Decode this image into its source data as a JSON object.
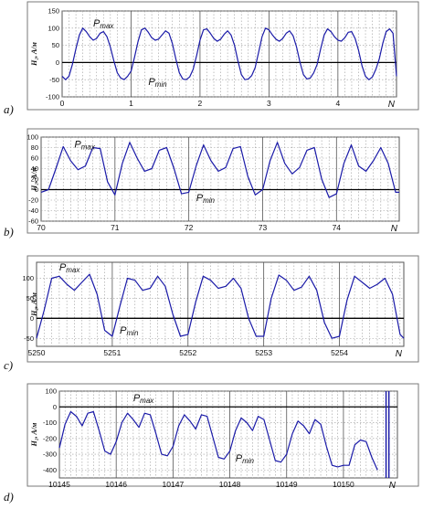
{
  "chart_data": [
    {
      "type": "line",
      "panel": "a)",
      "ylabel": "H₂, A/м",
      "xlabel": "N",
      "xlim": [
        0,
        4.85
      ],
      "ylim": [
        -100,
        150
      ],
      "yticks": [
        -100,
        -50,
        0,
        50,
        100,
        150
      ],
      "xticks": [
        0,
        1,
        2,
        3,
        4
      ],
      "annotations": [
        {
          "base": "P",
          "sub": "max",
          "x": 0.45,
          "y": 105
        },
        {
          "base": "P",
          "sub": "min",
          "x": 1.25,
          "y": -65
        }
      ],
      "series": [
        {
          "x": [
            0,
            0.05,
            0.1,
            0.15,
            0.2,
            0.25,
            0.3,
            0.35,
            0.4,
            0.45,
            0.5,
            0.55,
            0.6,
            0.65,
            0.7,
            0.75,
            0.8,
            0.85,
            0.9,
            0.95,
            1,
            1.05,
            1.1,
            1.15,
            1.2,
            1.25,
            1.3,
            1.35,
            1.4,
            1.45,
            1.5,
            1.55,
            1.6,
            1.65,
            1.7,
            1.75,
            1.8,
            1.85,
            1.9,
            1.95,
            2,
            2.05,
            2.1,
            2.15,
            2.2,
            2.25,
            2.3,
            2.35,
            2.4,
            2.45,
            2.5,
            2.55,
            2.6,
            2.65,
            2.7,
            2.75,
            2.8,
            2.85,
            2.9,
            2.95,
            3,
            3.05,
            3.1,
            3.15,
            3.2,
            3.25,
            3.3,
            3.35,
            3.4,
            3.45,
            3.5,
            3.55,
            3.6,
            3.65,
            3.7,
            3.75,
            3.8,
            3.85,
            3.9,
            3.95,
            4,
            4.05,
            4.1,
            4.15,
            4.2,
            4.25,
            4.3,
            4.35,
            4.4,
            4.45,
            4.5,
            4.55,
            4.6,
            4.65,
            4.7,
            4.75,
            4.8,
            4.85
          ],
          "values": [
            -40,
            -50,
            -40,
            -5,
            40,
            80,
            100,
            90,
            75,
            65,
            70,
            85,
            90,
            75,
            45,
            5,
            -30,
            -45,
            -50,
            -40,
            -25,
            15,
            60,
            95,
            100,
            88,
            72,
            65,
            68,
            80,
            92,
            85,
            55,
            10,
            -30,
            -48,
            -50,
            -42,
            -20,
            20,
            65,
            95,
            98,
            85,
            70,
            62,
            68,
            82,
            92,
            80,
            50,
            5,
            -35,
            -50,
            -48,
            -38,
            -15,
            30,
            75,
            100,
            95,
            80,
            68,
            62,
            70,
            85,
            92,
            78,
            45,
            0,
            -35,
            -48,
            -45,
            -30,
            -5,
            40,
            80,
            98,
            90,
            75,
            65,
            62,
            72,
            88,
            90,
            70,
            35,
            -10,
            -40,
            -50,
            -42,
            -20,
            10,
            55,
            90,
            98,
            85,
            -40
          ]
        }
      ]
    },
    {
      "type": "line",
      "panel": "b)",
      "ylabel": "H₂, A/м",
      "xlabel": "N",
      "xlim": [
        70,
        74.85
      ],
      "ylim": [
        -60,
        100
      ],
      "yticks": [
        -60,
        -40,
        -20,
        0,
        20,
        40,
        60,
        80,
        100
      ],
      "xticks": [
        70,
        71,
        72,
        73,
        74
      ],
      "annotations": [
        {
          "base": "P",
          "sub": "max",
          "x": 70.45,
          "y": 80
        },
        {
          "base": "P",
          "sub": "min",
          "x": 72.1,
          "y": -22
        }
      ],
      "series": [
        {
          "x": [
            70,
            70.1,
            70.2,
            70.3,
            70.4,
            70.5,
            70.6,
            70.7,
            70.8,
            70.9,
            71,
            71.1,
            71.2,
            71.3,
            71.4,
            71.5,
            71.6,
            71.7,
            71.8,
            71.9,
            72,
            72.1,
            72.2,
            72.3,
            72.4,
            72.5,
            72.6,
            72.7,
            72.8,
            72.9,
            73,
            73.1,
            73.2,
            73.3,
            73.4,
            73.5,
            73.6,
            73.7,
            73.8,
            73.9,
            74,
            74.1,
            74.2,
            74.3,
            74.4,
            74.5,
            74.6,
            74.7,
            74.8,
            74.85
          ],
          "values": [
            -5,
            0,
            40,
            82,
            55,
            38,
            45,
            80,
            78,
            15,
            -10,
            50,
            90,
            60,
            35,
            40,
            75,
            80,
            40,
            -8,
            -5,
            45,
            85,
            55,
            35,
            42,
            78,
            82,
            25,
            -10,
            0,
            55,
            90,
            50,
            30,
            42,
            75,
            80,
            20,
            -15,
            -8,
            50,
            85,
            45,
            35,
            55,
            80,
            50,
            -5,
            -5
          ]
        }
      ]
    },
    {
      "type": "line",
      "panel": "c)",
      "ylabel": "H₂, A/м",
      "xlabel": "N",
      "xlim": [
        5250,
        5254.85
      ],
      "ylim": [
        -70,
        140
      ],
      "yticks": [
        -50,
        0,
        50,
        100
      ],
      "xticks": [
        5250,
        5251,
        5252,
        5253,
        5254
      ],
      "annotations": [
        {
          "base": "P",
          "sub": "max",
          "x": 5250.3,
          "y": 120
        },
        {
          "base": "P",
          "sub": "min",
          "x": 5251.1,
          "y": -38
        }
      ],
      "series": [
        {
          "x": [
            5250,
            5250.1,
            5250.2,
            5250.3,
            5250.4,
            5250.5,
            5250.6,
            5250.7,
            5250.8,
            5250.9,
            5251,
            5251.1,
            5251.2,
            5251.3,
            5251.4,
            5251.5,
            5251.6,
            5251.7,
            5251.8,
            5251.9,
            5252,
            5252.1,
            5252.2,
            5252.3,
            5252.4,
            5252.5,
            5252.6,
            5252.7,
            5252.8,
            5252.9,
            5253,
            5253.1,
            5253.2,
            5253.3,
            5253.4,
            5253.5,
            5253.6,
            5253.7,
            5253.8,
            5253.9,
            5254,
            5254.1,
            5254.2,
            5254.3,
            5254.4,
            5254.5,
            5254.6,
            5254.7,
            5254.8,
            5254.85
          ],
          "values": [
            -50,
            20,
            100,
            105,
            85,
            70,
            90,
            110,
            60,
            -30,
            -45,
            30,
            100,
            95,
            70,
            75,
            105,
            80,
            10,
            -45,
            -40,
            40,
            105,
            95,
            75,
            80,
            100,
            75,
            0,
            -45,
            -45,
            50,
            108,
            95,
            70,
            78,
            105,
            70,
            -10,
            -50,
            -45,
            45,
            105,
            90,
            75,
            85,
            100,
            60,
            -40,
            -50
          ]
        }
      ]
    },
    {
      "type": "line",
      "panel": "d)",
      "ylabel": "H₂, A/м",
      "xlabel": "N",
      "xlim": [
        10145,
        10150.95
      ],
      "ylim": [
        -450,
        100
      ],
      "yticks": [
        -400,
        -300,
        -200,
        -100,
        0,
        100
      ],
      "xticks": [
        10145,
        10146,
        10147,
        10148,
        10149,
        10150
      ],
      "annotations": [
        {
          "base": "P",
          "sub": "max",
          "x": 10146.3,
          "y": 35
        },
        {
          "base": "P",
          "sub": "min",
          "x": 10148.1,
          "y": -345
        }
      ],
      "series": [
        {
          "x": [
            10145,
            10145.1,
            10145.2,
            10145.3,
            10145.4,
            10145.5,
            10145.6,
            10145.7,
            10145.8,
            10145.9,
            10146,
            10146.1,
            10146.2,
            10146.3,
            10146.4,
            10146.5,
            10146.6,
            10146.7,
            10146.8,
            10146.9,
            10147,
            10147.1,
            10147.2,
            10147.3,
            10147.4,
            10147.5,
            10147.6,
            10147.7,
            10147.8,
            10147.9,
            10148,
            10148.1,
            10148.2,
            10148.3,
            10148.4,
            10148.5,
            10148.6,
            10148.7,
            10148.8,
            10148.9,
            10149,
            10149.1,
            10149.2,
            10149.3,
            10149.4,
            10149.5,
            10149.6,
            10149.7,
            10149.8,
            10149.9,
            10150,
            10150.1,
            10150.2,
            10150.3,
            10150.4,
            10150.5,
            10150.6
          ],
          "values": [
            -260,
            -110,
            -30,
            -60,
            -120,
            -40,
            -30,
            -150,
            -280,
            -300,
            -220,
            -100,
            -40,
            -80,
            -130,
            -40,
            -50,
            -170,
            -300,
            -310,
            -250,
            -120,
            -50,
            -90,
            -140,
            -50,
            -60,
            -190,
            -320,
            -330,
            -280,
            -150,
            -70,
            -100,
            -150,
            -60,
            -80,
            -210,
            -340,
            -350,
            -300,
            -170,
            -90,
            -120,
            -170,
            -80,
            -110,
            -250,
            -370,
            -380,
            -370,
            -370,
            -240,
            -210,
            -220,
            -320,
            -400
          ]
        }
      ],
      "spikes_x": [
        10150.75,
        10150.8
      ]
    }
  ]
}
